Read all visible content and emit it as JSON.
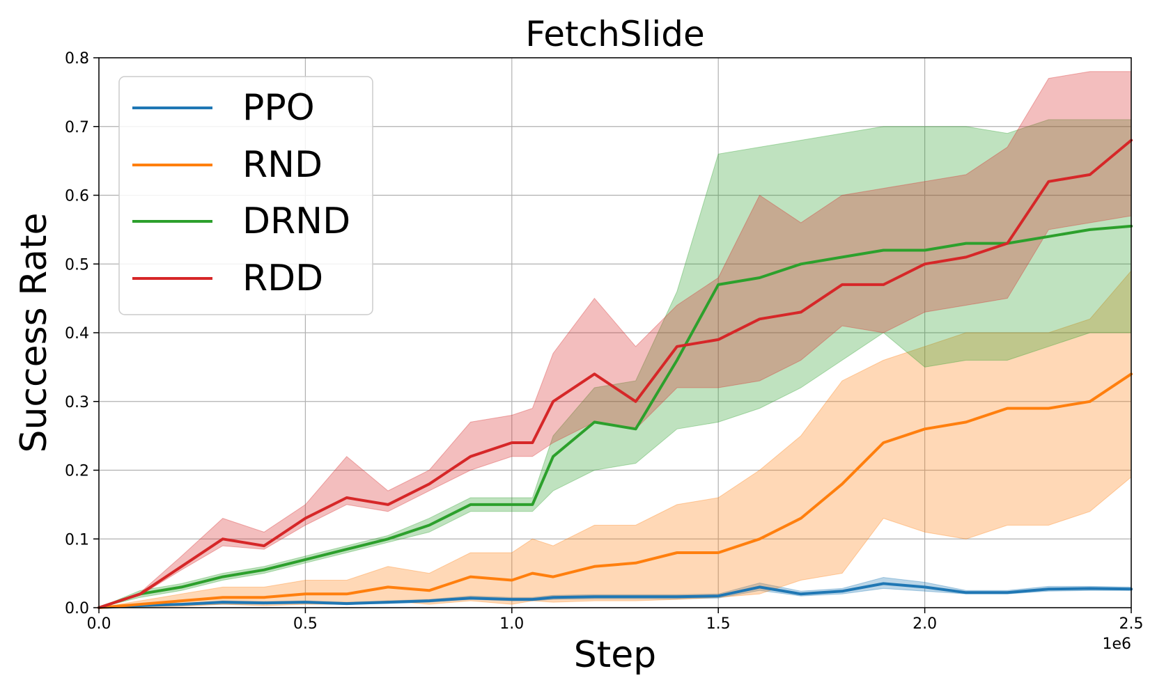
{
  "chart_data": {
    "type": "line",
    "title": "FetchSlide",
    "xlabel": "Step",
    "ylabel": "Success Rate",
    "x_multiplier_label": "1e6",
    "xlim": [
      0,
      2.5
    ],
    "ylim": [
      0,
      0.8
    ],
    "x_unit": "1e6 steps",
    "xticks": [
      0.0,
      0.5,
      1.0,
      1.5,
      2.0,
      2.5
    ],
    "xtick_labels": [
      "0.0",
      "0.5",
      "1.0",
      "1.5",
      "2.0",
      "2.5"
    ],
    "yticks": [
      0.0,
      0.1,
      0.2,
      0.3,
      0.4,
      0.5,
      0.6,
      0.7,
      0.8
    ],
    "ytick_labels": [
      "0.0",
      "0.1",
      "0.2",
      "0.3",
      "0.4",
      "0.5",
      "0.6",
      "0.7",
      "0.8"
    ],
    "grid": true,
    "legend_position": "top-left",
    "x": [
      0.0,
      0.1,
      0.2,
      0.3,
      0.4,
      0.5,
      0.6,
      0.7,
      0.8,
      0.9,
      1.0,
      1.05,
      1.1,
      1.2,
      1.3,
      1.4,
      1.5,
      1.6,
      1.7,
      1.8,
      1.9,
      2.0,
      2.1,
      2.2,
      2.3,
      2.4,
      2.5
    ],
    "series": [
      {
        "name": "PPO",
        "color": "#1f77b4",
        "mean": [
          0.0,
          0.003,
          0.005,
          0.008,
          0.007,
          0.008,
          0.006,
          0.008,
          0.01,
          0.014,
          0.012,
          0.012,
          0.015,
          0.016,
          0.016,
          0.016,
          0.017,
          0.03,
          0.02,
          0.024,
          0.035,
          0.03,
          0.022,
          0.022,
          0.027,
          0.028,
          0.027
        ],
        "lower": [
          0.0,
          0.002,
          0.003,
          0.005,
          0.005,
          0.006,
          0.005,
          0.006,
          0.008,
          0.012,
          0.01,
          0.01,
          0.012,
          0.013,
          0.013,
          0.013,
          0.014,
          0.025,
          0.017,
          0.02,
          0.028,
          0.024,
          0.02,
          0.02,
          0.024,
          0.025,
          0.025
        ],
        "upper": [
          0.0,
          0.004,
          0.006,
          0.01,
          0.009,
          0.01,
          0.008,
          0.01,
          0.012,
          0.017,
          0.015,
          0.015,
          0.018,
          0.019,
          0.019,
          0.019,
          0.02,
          0.036,
          0.024,
          0.028,
          0.044,
          0.037,
          0.025,
          0.025,
          0.031,
          0.031,
          0.03
        ]
      },
      {
        "name": "RND",
        "color": "#ff7f0e",
        "mean": [
          0.0,
          0.005,
          0.01,
          0.015,
          0.015,
          0.02,
          0.02,
          0.03,
          0.025,
          0.045,
          0.04,
          0.05,
          0.045,
          0.06,
          0.065,
          0.08,
          0.08,
          0.1,
          0.13,
          0.18,
          0.24,
          0.26,
          0.27,
          0.29,
          0.29,
          0.3,
          0.34
        ],
        "lower": [
          0.0,
          0.001,
          0.002,
          0.005,
          0.003,
          0.005,
          0.005,
          0.01,
          0.005,
          0.01,
          0.005,
          0.01,
          0.008,
          0.01,
          0.01,
          0.012,
          0.015,
          0.02,
          0.04,
          0.05,
          0.13,
          0.11,
          0.1,
          0.12,
          0.12,
          0.14,
          0.19
        ],
        "upper": [
          0.0,
          0.01,
          0.02,
          0.03,
          0.03,
          0.04,
          0.04,
          0.06,
          0.05,
          0.08,
          0.08,
          0.1,
          0.09,
          0.12,
          0.12,
          0.15,
          0.16,
          0.2,
          0.25,
          0.33,
          0.36,
          0.38,
          0.4,
          0.4,
          0.4,
          0.42,
          0.49
        ]
      },
      {
        "name": "DRND",
        "color": "#2ca02c",
        "mean": [
          0.0,
          0.02,
          0.03,
          0.045,
          0.055,
          0.07,
          0.085,
          0.1,
          0.12,
          0.15,
          0.15,
          0.15,
          0.22,
          0.27,
          0.26,
          0.36,
          0.47,
          0.48,
          0.5,
          0.51,
          0.52,
          0.52,
          0.53,
          0.53,
          0.54,
          0.55,
          0.555
        ],
        "lower": [
          0.0,
          0.015,
          0.025,
          0.04,
          0.05,
          0.065,
          0.08,
          0.095,
          0.11,
          0.14,
          0.14,
          0.14,
          0.17,
          0.2,
          0.21,
          0.26,
          0.27,
          0.29,
          0.32,
          0.36,
          0.4,
          0.35,
          0.36,
          0.36,
          0.38,
          0.4,
          0.4
        ],
        "upper": [
          0.0,
          0.025,
          0.035,
          0.05,
          0.06,
          0.075,
          0.09,
          0.105,
          0.13,
          0.16,
          0.16,
          0.16,
          0.25,
          0.32,
          0.33,
          0.46,
          0.66,
          0.67,
          0.68,
          0.69,
          0.7,
          0.7,
          0.7,
          0.69,
          0.71,
          0.71,
          0.71
        ]
      },
      {
        "name": "RDD",
        "color": "#d62728",
        "mean": [
          0.0,
          0.02,
          0.06,
          0.1,
          0.09,
          0.13,
          0.16,
          0.15,
          0.18,
          0.22,
          0.24,
          0.24,
          0.3,
          0.34,
          0.3,
          0.38,
          0.39,
          0.42,
          0.43,
          0.47,
          0.47,
          0.5,
          0.51,
          0.53,
          0.62,
          0.63,
          0.68
        ],
        "lower": [
          0.0,
          0.018,
          0.055,
          0.09,
          0.085,
          0.12,
          0.15,
          0.14,
          0.17,
          0.2,
          0.22,
          0.22,
          0.24,
          0.27,
          0.26,
          0.32,
          0.32,
          0.33,
          0.36,
          0.41,
          0.4,
          0.43,
          0.44,
          0.45,
          0.55,
          0.56,
          0.57
        ],
        "upper": [
          0.0,
          0.022,
          0.075,
          0.13,
          0.11,
          0.15,
          0.22,
          0.17,
          0.2,
          0.27,
          0.28,
          0.29,
          0.37,
          0.45,
          0.38,
          0.44,
          0.48,
          0.6,
          0.56,
          0.6,
          0.61,
          0.62,
          0.63,
          0.67,
          0.77,
          0.78,
          0.78
        ]
      }
    ]
  }
}
